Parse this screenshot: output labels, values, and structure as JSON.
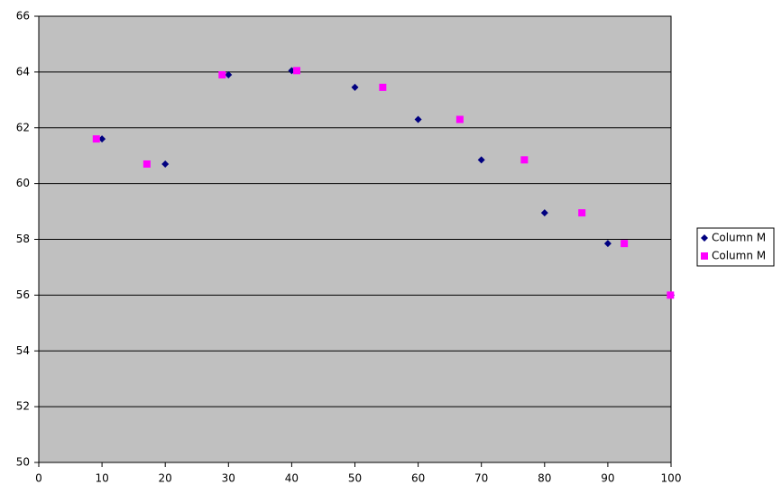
{
  "chart_data": {
    "type": "scatter",
    "xlim": [
      0,
      100
    ],
    "xticks": [
      0,
      10,
      20,
      30,
      40,
      50,
      60,
      70,
      80,
      90,
      100
    ],
    "ylim": [
      50,
      66
    ],
    "yticks": [
      50,
      52,
      54,
      56,
      58,
      60,
      62,
      64,
      66
    ],
    "grid": true,
    "legend": "right",
    "series": [
      {
        "name": "Column M",
        "color": "#000080",
        "marker": "diamond",
        "x": [
          10,
          20,
          30,
          40,
          50,
          60,
          70,
          80,
          90,
          100
        ],
        "values": [
          61.6,
          60.7,
          63.9,
          64.05,
          63.45,
          62.3,
          60.85,
          58.95,
          57.85,
          56.0
        ]
      },
      {
        "name": "Column M",
        "color": "#ff00ff",
        "marker": "square",
        "x": [
          9.1,
          17.1,
          29.0,
          40.8,
          54.4,
          66.6,
          76.8,
          85.9,
          92.6,
          99.9
        ],
        "values": [
          61.6,
          60.7,
          63.9,
          64.05,
          63.45,
          62.3,
          60.85,
          58.95,
          57.85,
          56.0
        ]
      }
    ]
  }
}
